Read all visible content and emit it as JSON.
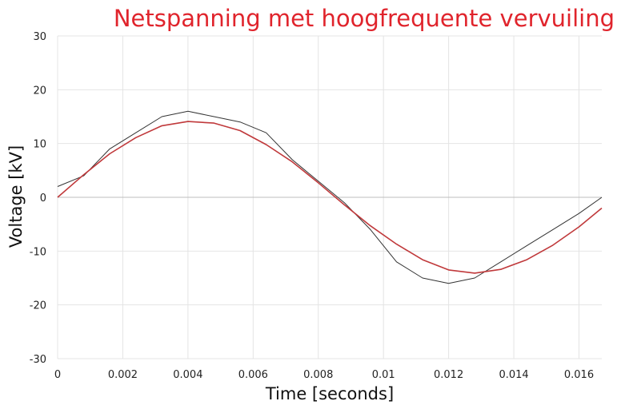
{
  "chart_data": {
    "type": "line",
    "title": "Netspanning met hoogfrequente vervuiling",
    "xlabel": "Time [seconds]",
    "ylabel": "Voltage [kV]",
    "xlim": [
      0,
      0.0167
    ],
    "ylim": [
      -30,
      30
    ],
    "x_ticks": [
      0,
      0.002,
      0.004,
      0.006,
      0.008,
      0.01,
      0.012,
      0.014,
      0.016
    ],
    "x_tick_labels": [
      "0",
      "0.002",
      "0.004",
      "0.006",
      "0.008",
      "0.01",
      "0.012",
      "0.014",
      "0.016"
    ],
    "y_ticks": [
      30,
      20,
      10,
      0,
      -10,
      -20,
      -30
    ],
    "y_tick_labels": [
      "30",
      "20",
      "10",
      "0",
      "-10",
      "-20",
      "-30"
    ],
    "grid": true,
    "legend": "none",
    "series": [
      {
        "color": "#333333",
        "x": [
          0,
          0.0008,
          0.0016,
          0.0024,
          0.0032,
          0.004,
          0.0048,
          0.0056,
          0.0064,
          0.0072,
          0.008,
          0.0088,
          0.0096,
          0.0104,
          0.0112,
          0.012,
          0.0128,
          0.0136,
          0.0144,
          0.0152,
          0.016,
          0.0167
        ],
        "y": [
          2,
          4,
          9,
          12,
          15,
          16,
          15,
          14,
          12,
          7,
          3,
          -1,
          -6,
          -12,
          -15,
          -16,
          -15,
          -12,
          -9,
          -6,
          -3,
          0
        ]
      },
      {
        "color": "#c0393b",
        "x": [
          0,
          0.0008,
          0.0016,
          0.0024,
          0.0032,
          0.004,
          0.0048,
          0.0056,
          0.0064,
          0.0072,
          0.008,
          0.0088,
          0.0096,
          0.0104,
          0.0112,
          0.012,
          0.0128,
          0.0136,
          0.0144,
          0.0152,
          0.016,
          0.0167
        ],
        "y": [
          0,
          4.2,
          8.1,
          11.1,
          13.3,
          14.1,
          13.8,
          12.4,
          9.8,
          6.6,
          2.7,
          -1.4,
          -5.3,
          -8.7,
          -11.6,
          -13.5,
          -14.1,
          -13.4,
          -11.6,
          -8.9,
          -5.5,
          -2.0
        ]
      }
    ]
  }
}
